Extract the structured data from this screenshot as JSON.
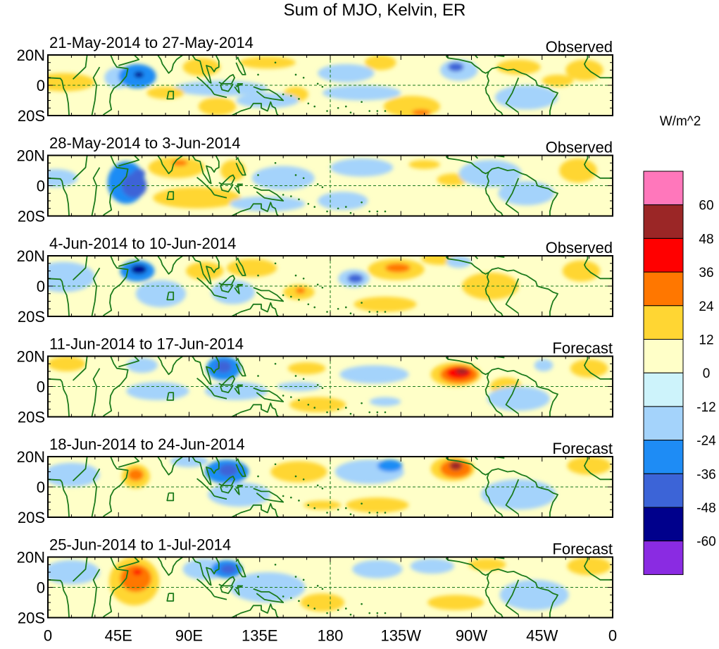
{
  "chart_data": {
    "type": "heatmap",
    "title": "Sum of MJO, Kelvin, ER",
    "xlabel": "",
    "ylabel": "",
    "x_ticks": [
      "0",
      "45E",
      "90E",
      "135E",
      "180",
      "135W",
      "90W",
      "45W",
      "0"
    ],
    "x_tick_lon": [
      0,
      45,
      90,
      135,
      180,
      225,
      270,
      315,
      360
    ],
    "y_ticks": [
      "20N",
      "0",
      "20S"
    ],
    "y_tick_lat": [
      20,
      0,
      -20
    ],
    "xlim": [
      0,
      360
    ],
    "ylim": [
      -20,
      20
    ],
    "dateline_lon": 180,
    "equator_lat": 0,
    "colorbar": {
      "unit": "W/m^2",
      "tick_labels": [
        "60",
        "48",
        "36",
        "24",
        "12",
        "0",
        "-12",
        "-24",
        "-36",
        "-48",
        "-60"
      ],
      "levels": [
        60,
        48,
        36,
        24,
        12,
        0,
        -12,
        -24,
        -36,
        -48,
        -60
      ],
      "colors": [
        "#ff77bb",
        "#9b2626",
        "#ff0000",
        "#ff7700",
        "#ffd633",
        "#ffffc8",
        "#cdf3fb",
        "#a4d3fb",
        "#1e8cf5",
        "#3c64d7",
        "#00008c",
        "#8a2be2"
      ]
    },
    "panels": [
      {
        "period": "21-May-2014 to 27-May-2014",
        "type": "Observed",
        "anomalies": [
          {
            "lon": 10,
            "lat": 2,
            "rlon": 20,
            "rlat": 6,
            "value": 14
          },
          {
            "lon": 45,
            "lat": 5,
            "rlon": 9,
            "rlat": 7,
            "value": -14
          },
          {
            "lon": 57,
            "lat": 6,
            "rlon": 12,
            "rlat": 8,
            "value": -30
          },
          {
            "lon": 58,
            "lat": 7,
            "rlon": 3,
            "rlat": 2,
            "value": -52
          },
          {
            "lon": 98,
            "lat": 12,
            "rlon": 12,
            "rlat": 6,
            "value": 14
          },
          {
            "lon": 110,
            "lat": -2,
            "rlon": 30,
            "rlat": 5,
            "value": -13
          },
          {
            "lon": 75,
            "lat": -5,
            "rlon": 12,
            "rlat": 4,
            "value": 14
          },
          {
            "lon": 158,
            "lat": -6,
            "rlon": 8,
            "rlat": 5,
            "value": 14
          },
          {
            "lon": 108,
            "lat": -14,
            "rlon": 12,
            "rlat": 6,
            "value": 14
          },
          {
            "lon": 140,
            "lat": -10,
            "rlon": 20,
            "rlat": 5,
            "value": -13
          },
          {
            "lon": 140,
            "lat": 15,
            "rlon": 18,
            "rlat": 4,
            "value": 13
          },
          {
            "lon": 190,
            "lat": 8,
            "rlon": 18,
            "rlat": 6,
            "value": -13
          },
          {
            "lon": 212,
            "lat": 15,
            "rlon": 10,
            "rlat": 5,
            "value": 14
          },
          {
            "lon": 232,
            "lat": -14,
            "rlon": 18,
            "rlat": 7,
            "value": 18
          },
          {
            "lon": 238,
            "lat": -18,
            "rlon": 6,
            "rlat": 2,
            "value": 32
          },
          {
            "lon": 262,
            "lat": 10,
            "rlon": 12,
            "rlat": 7,
            "value": -22
          },
          {
            "lon": 260,
            "lat": 12,
            "rlon": 5,
            "rlat": 3,
            "value": -38
          },
          {
            "lon": 300,
            "lat": 12,
            "rlon": 14,
            "rlat": 5,
            "value": 13
          },
          {
            "lon": 342,
            "lat": 10,
            "rlon": 12,
            "rlat": 7,
            "value": 13
          },
          {
            "lon": 305,
            "lat": -8,
            "rlon": 20,
            "rlat": 8,
            "value": -13
          },
          {
            "lon": 200,
            "lat": -5,
            "rlon": 25,
            "rlat": 5,
            "value": -13
          },
          {
            "lon": 325,
            "lat": 3,
            "rlon": 10,
            "rlat": 4,
            "value": 13
          }
        ]
      },
      {
        "period": "28-May-2014 to 3-Jun-2014",
        "type": "Observed",
        "anomalies": [
          {
            "lon": 5,
            "lat": 5,
            "rlon": 14,
            "rlat": 6,
            "value": -14
          },
          {
            "lon": 50,
            "lat": 2,
            "rlon": 12,
            "rlat": 14,
            "value": -25
          },
          {
            "lon": 55,
            "lat": 0,
            "rlon": 8,
            "rlat": 8,
            "value": -38
          },
          {
            "lon": 58,
            "lat": 8,
            "rlon": 4,
            "rlat": 3,
            "value": -40
          },
          {
            "lon": 82,
            "lat": 12,
            "rlon": 18,
            "rlat": 7,
            "value": 15
          },
          {
            "lon": 84,
            "lat": 15,
            "rlon": 5,
            "rlat": 2,
            "value": 30
          },
          {
            "lon": 118,
            "lat": 10,
            "rlon": 8,
            "rlat": 7,
            "value": 18
          },
          {
            "lon": 150,
            "lat": 5,
            "rlon": 20,
            "rlat": 8,
            "value": -13
          },
          {
            "lon": 95,
            "lat": -8,
            "rlon": 28,
            "rlat": 7,
            "value": 13
          },
          {
            "lon": 140,
            "lat": -12,
            "rlon": 24,
            "rlat": 5,
            "value": -13
          },
          {
            "lon": 188,
            "lat": -10,
            "rlon": 16,
            "rlat": 6,
            "value": -14
          },
          {
            "lon": 200,
            "lat": 12,
            "rlon": 20,
            "rlat": 6,
            "value": -13
          },
          {
            "lon": 240,
            "lat": 14,
            "rlon": 10,
            "rlat": 3,
            "value": 15
          },
          {
            "lon": 258,
            "lat": 4,
            "rlon": 10,
            "rlat": 4,
            "value": 15
          },
          {
            "lon": 282,
            "lat": 8,
            "rlon": 20,
            "rlat": 9,
            "value": -14
          },
          {
            "lon": 338,
            "lat": 10,
            "rlon": 12,
            "rlat": 8,
            "value": 13
          },
          {
            "lon": 305,
            "lat": -5,
            "rlon": 18,
            "rlat": 8,
            "value": -13
          }
        ]
      },
      {
        "period": "4-Jun-2014 to 10-Jun-2014",
        "type": "Observed",
        "anomalies": [
          {
            "lon": 10,
            "lat": 6,
            "rlon": 20,
            "rlat": 10,
            "value": -14
          },
          {
            "lon": 57,
            "lat": 10,
            "rlon": 11,
            "rlat": 7,
            "value": -30
          },
          {
            "lon": 58,
            "lat": 11,
            "rlon": 5,
            "rlat": 3,
            "value": -58
          },
          {
            "lon": 72,
            "lat": -5,
            "rlon": 16,
            "rlat": 9,
            "value": -13
          },
          {
            "lon": 100,
            "lat": 10,
            "rlon": 12,
            "rlat": 6,
            "value": 14
          },
          {
            "lon": 130,
            "lat": 12,
            "rlon": 16,
            "rlat": 6,
            "value": 15
          },
          {
            "lon": 118,
            "lat": -4,
            "rlon": 14,
            "rlat": 8,
            "value": -14
          },
          {
            "lon": 160,
            "lat": -4,
            "rlon": 10,
            "rlat": 5,
            "value": 18
          },
          {
            "lon": 161,
            "lat": -3,
            "rlon": 3,
            "rlat": 2,
            "value": 30
          },
          {
            "lon": 195,
            "lat": 5,
            "rlon": 10,
            "rlat": 6,
            "value": -22
          },
          {
            "lon": 196,
            "lat": 5,
            "rlon": 5,
            "rlat": 3,
            "value": -38
          },
          {
            "lon": 222,
            "lat": 11,
            "rlon": 18,
            "rlat": 7,
            "value": 18
          },
          {
            "lon": 223,
            "lat": 12,
            "rlon": 8,
            "rlat": 3,
            "value": 32
          },
          {
            "lon": 250,
            "lat": 18,
            "rlon": 12,
            "rlat": 4,
            "value": 14
          },
          {
            "lon": 262,
            "lat": 16,
            "rlon": 8,
            "rlat": 4,
            "value": -15
          },
          {
            "lon": 282,
            "lat": 0,
            "rlon": 18,
            "rlat": 9,
            "value": 14
          },
          {
            "lon": 340,
            "lat": 10,
            "rlon": 12,
            "rlat": 7,
            "value": 13
          },
          {
            "lon": 215,
            "lat": -12,
            "rlon": 20,
            "rlat": 5,
            "value": 13
          }
        ]
      },
      {
        "period": "11-Jun-2014 to 17-Jun-2014",
        "type": "Forecast",
        "anomalies": [
          {
            "lon": 60,
            "lat": 14,
            "rlon": 10,
            "rlat": 5,
            "value": -15
          },
          {
            "lon": 70,
            "lat": -3,
            "rlon": 20,
            "rlat": 6,
            "value": -13
          },
          {
            "lon": 112,
            "lat": 12,
            "rlon": 11,
            "rlat": 8,
            "value": -28
          },
          {
            "lon": 112,
            "lat": 13,
            "rlon": 5,
            "rlat": 4,
            "value": -42
          },
          {
            "lon": 120,
            "lat": -3,
            "rlon": 20,
            "rlat": 6,
            "value": -14
          },
          {
            "lon": 160,
            "lat": 0,
            "rlon": 14,
            "rlat": 3,
            "value": -15
          },
          {
            "lon": 165,
            "lat": 12,
            "rlon": 12,
            "rlat": 4,
            "value": 13
          },
          {
            "lon": 172,
            "lat": -12,
            "rlon": 18,
            "rlat": 5,
            "value": 13
          },
          {
            "lon": 208,
            "lat": 8,
            "rlon": 22,
            "rlat": 6,
            "value": -13
          },
          {
            "lon": 215,
            "lat": -10,
            "rlon": 10,
            "rlat": 3,
            "value": -13
          },
          {
            "lon": 260,
            "lat": 8,
            "rlon": 16,
            "rlat": 8,
            "value": 20
          },
          {
            "lon": 262,
            "lat": 8,
            "rlon": 12,
            "rlat": 6,
            "value": 30
          },
          {
            "lon": 262,
            "lat": 9,
            "rlon": 8,
            "rlat": 4,
            "value": 40
          },
          {
            "lon": 264,
            "lat": 10,
            "rlon": 4,
            "rlat": 2,
            "value": 50
          },
          {
            "lon": 292,
            "lat": 0,
            "rlon": 10,
            "rlat": 6,
            "value": 13
          },
          {
            "lon": 316,
            "lat": 14,
            "rlon": 6,
            "rlat": 4,
            "value": -15
          },
          {
            "lon": 345,
            "lat": 12,
            "rlon": 12,
            "rlat": 6,
            "value": 14
          },
          {
            "lon": 12,
            "lat": 15,
            "rlon": 12,
            "rlat": 5,
            "value": 13
          },
          {
            "lon": 300,
            "lat": -8,
            "rlon": 20,
            "rlat": 8,
            "value": -13
          }
        ]
      },
      {
        "period": "18-Jun-2014 to 24-Jun-2014",
        "type": "Forecast",
        "anomalies": [
          {
            "lon": 56,
            "lat": 7,
            "rlon": 9,
            "rlat": 8,
            "value": 20
          },
          {
            "lon": 56,
            "lat": 8,
            "rlon": 5,
            "rlat": 4,
            "value": 30
          },
          {
            "lon": 15,
            "lat": 8,
            "rlon": 18,
            "rlat": 8,
            "value": -14
          },
          {
            "lon": 90,
            "lat": 17,
            "rlon": 12,
            "rlat": 4,
            "value": -18
          },
          {
            "lon": 114,
            "lat": 10,
            "rlon": 14,
            "rlat": 8,
            "value": -25
          },
          {
            "lon": 115,
            "lat": 11,
            "rlon": 6,
            "rlat": 4,
            "value": -40
          },
          {
            "lon": 122,
            "lat": -5,
            "rlon": 20,
            "rlat": 8,
            "value": -14
          },
          {
            "lon": 160,
            "lat": 10,
            "rlon": 18,
            "rlat": 7,
            "value": 15
          },
          {
            "lon": 205,
            "lat": 10,
            "rlon": 22,
            "rlat": 8,
            "value": -16
          },
          {
            "lon": 218,
            "lat": 14,
            "rlon": 8,
            "rlat": 4,
            "value": -28
          },
          {
            "lon": 210,
            "lat": -12,
            "rlon": 20,
            "rlat": 5,
            "value": 13
          },
          {
            "lon": 258,
            "lat": 12,
            "rlon": 14,
            "rlat": 8,
            "value": 20
          },
          {
            "lon": 260,
            "lat": 12,
            "rlon": 10,
            "rlat": 6,
            "value": 32
          },
          {
            "lon": 260,
            "lat": 14,
            "rlon": 4,
            "rlat": 3,
            "value": 48
          },
          {
            "lon": 300,
            "lat": -5,
            "rlon": 24,
            "rlat": 10,
            "value": -13
          },
          {
            "lon": 345,
            "lat": 14,
            "rlon": 14,
            "rlat": 6,
            "value": 15
          },
          {
            "lon": 175,
            "lat": -12,
            "rlon": 12,
            "rlat": 3,
            "value": 15
          }
        ]
      },
      {
        "period": "25-Jun-2014 to 1-Jul-2014",
        "type": "Forecast",
        "anomalies": [
          {
            "lon": 55,
            "lat": 4,
            "rlon": 16,
            "rlat": 16,
            "value": 20
          },
          {
            "lon": 56,
            "lat": 6,
            "rlon": 10,
            "rlat": 9,
            "value": 30
          },
          {
            "lon": 57,
            "lat": 10,
            "rlon": 3,
            "rlat": 2,
            "value": 40
          },
          {
            "lon": 15,
            "lat": 10,
            "rlon": 18,
            "rlat": 8,
            "value": -13
          },
          {
            "lon": 100,
            "lat": 12,
            "rlon": 14,
            "rlat": 7,
            "value": -16
          },
          {
            "lon": 114,
            "lat": 12,
            "rlon": 10,
            "rlat": 6,
            "value": -26
          },
          {
            "lon": 115,
            "lat": 12,
            "rlon": 5,
            "rlat": 3,
            "value": -40
          },
          {
            "lon": 140,
            "lat": 0,
            "rlon": 24,
            "rlat": 10,
            "value": -13
          },
          {
            "lon": 175,
            "lat": -10,
            "rlon": 14,
            "rlat": 6,
            "value": 16
          },
          {
            "lon": 210,
            "lat": 12,
            "rlon": 16,
            "rlat": 6,
            "value": -15
          },
          {
            "lon": 245,
            "lat": 14,
            "rlon": 14,
            "rlat": 5,
            "value": -14
          },
          {
            "lon": 280,
            "lat": 15,
            "rlon": 12,
            "rlat": 4,
            "value": 14
          },
          {
            "lon": 310,
            "lat": -5,
            "rlon": 22,
            "rlat": 10,
            "value": -13
          },
          {
            "lon": 345,
            "lat": 14,
            "rlon": 14,
            "rlat": 6,
            "value": 14
          },
          {
            "lon": 260,
            "lat": -10,
            "rlon": 18,
            "rlat": 5,
            "value": 13
          }
        ]
      }
    ]
  }
}
